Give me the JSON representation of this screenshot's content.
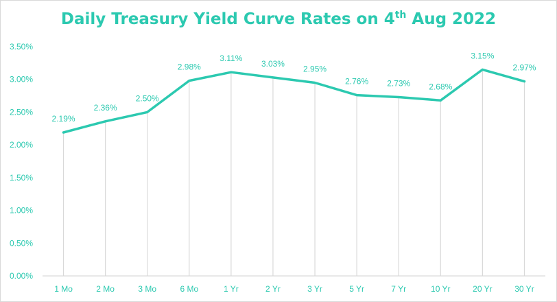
{
  "chart_data": {
    "type": "line",
    "title_main": "Daily Treasury Yield Curve Rates on 4",
    "title_sup": "th",
    "title_end": " Aug 2022",
    "categories": [
      "1 Mo",
      "2 Mo",
      "3 Mo",
      "6 Mo",
      "1 Yr",
      "2 Yr",
      "3 Yr",
      "5 Yr",
      "7 Yr",
      "10 Yr",
      "20 Yr",
      "30 Yr"
    ],
    "values": [
      2.19,
      2.36,
      2.5,
      2.98,
      3.11,
      3.03,
      2.95,
      2.76,
      2.73,
      2.68,
      3.15,
      2.97
    ],
    "data_labels": [
      "2.19%",
      "2.36%",
      "2.50%",
      "2.98%",
      "3.11%",
      "3.03%",
      "2.95%",
      "2.76%",
      "2.73%",
      "2.68%",
      "3.15%",
      "2.97%"
    ],
    "yticks": [
      0,
      0.5,
      1.0,
      1.5,
      2.0,
      2.5,
      3.0,
      3.5
    ],
    "ytick_labels": [
      "0.00%",
      "0.50%",
      "1.00%",
      "1.50%",
      "2.00%",
      "2.50%",
      "3.00%",
      "3.50%"
    ],
    "ylim": [
      0,
      3.5
    ],
    "grid": "vertical drop lines",
    "legend": "none",
    "colors": {
      "line": "#2cc9b0",
      "text": "#2cc9b0",
      "gridline": "#d9d9d9"
    }
  }
}
